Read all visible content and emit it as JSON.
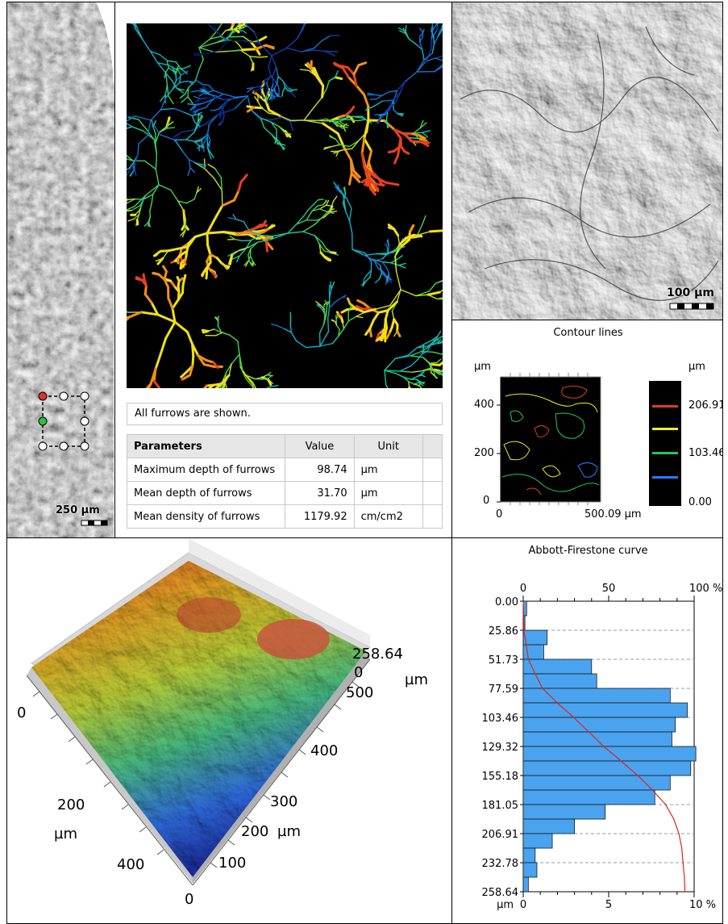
{
  "furrows": {
    "note": "All furrows are shown.",
    "table": {
      "headers": [
        "Parameters",
        "Value",
        "Unit"
      ],
      "rows": [
        {
          "name": "Maximum depth of furrows",
          "value": "98.74",
          "unit": "µm"
        },
        {
          "name": "Mean depth of furrows",
          "value": "31.70",
          "unit": "µm"
        },
        {
          "name": "Mean density of furrows",
          "value": "1179.92",
          "unit": "cm/cm2"
        }
      ]
    }
  },
  "left_strip": {
    "scale_label": "250 µm"
  },
  "surface_view": {
    "scale_label": "100 µm"
  },
  "contour": {
    "title": "Contour lines",
    "y_unit": "µm",
    "y_ticks": [
      "400",
      "200",
      "0"
    ],
    "x_ticks": [
      "0",
      "500.09 µm"
    ],
    "legend_unit": "µm",
    "legend_values": [
      "206.91",
      "103.46",
      "0.00"
    ],
    "legend_colors": [
      "#e0401e",
      "#f2ee1a",
      "#28c850",
      "#2a78ff"
    ]
  },
  "view3d": {
    "z_max_label": "258.64",
    "z_min_label": "0",
    "z_unit": "µm",
    "left_axis_ticks": [
      "0",
      "200",
      "400"
    ],
    "left_axis_unit": "µm",
    "right_axis_ticks": [
      "500",
      "400",
      "300",
      "200",
      "100",
      "0"
    ],
    "right_axis_unit": "µm"
  },
  "chart_data": {
    "type": "bar",
    "title": "Abbott-Firestone curve",
    "orientation": "horizontal",
    "top_axis_ticks": [
      "0",
      "50",
      "100 %"
    ],
    "bottom_axis_ticks": [
      "µm",
      "0",
      "5",
      "10 %"
    ],
    "depth_ticks": [
      "0.00",
      "25.86",
      "51.73",
      "77.59",
      "103.46",
      "129.32",
      "155.18",
      "181.05",
      "206.91",
      "232.78",
      "258.64"
    ],
    "depth_range": [
      0,
      258.64
    ],
    "histogram_range_percent": [
      0,
      10
    ],
    "curve_range_percent": [
      0,
      100
    ],
    "histogram": [
      {
        "from": 0,
        "to": 12.93,
        "value": 0.2
      },
      {
        "from": 12.93,
        "to": 25.86,
        "value": 0.1
      },
      {
        "from": 25.86,
        "to": 38.8,
        "value": 1.4
      },
      {
        "from": 38.8,
        "to": 51.73,
        "value": 1.2
      },
      {
        "from": 51.73,
        "to": 64.66,
        "value": 4.0
      },
      {
        "from": 64.66,
        "to": 77.59,
        "value": 4.3
      },
      {
        "from": 77.59,
        "to": 90.53,
        "value": 8.6
      },
      {
        "from": 90.53,
        "to": 103.46,
        "value": 9.6
      },
      {
        "from": 103.46,
        "to": 116.39,
        "value": 8.9
      },
      {
        "from": 116.39,
        "to": 129.32,
        "value": 8.7
      },
      {
        "from": 129.32,
        "to": 142.25,
        "value": 10.1
      },
      {
        "from": 142.25,
        "to": 155.18,
        "value": 9.8
      },
      {
        "from": 155.18,
        "to": 168.12,
        "value": 8.6
      },
      {
        "from": 168.12,
        "to": 181.05,
        "value": 7.7
      },
      {
        "from": 181.05,
        "to": 193.98,
        "value": 4.8
      },
      {
        "from": 193.98,
        "to": 206.91,
        "value": 3.0
      },
      {
        "from": 206.91,
        "to": 219.85,
        "value": 1.7
      },
      {
        "from": 219.85,
        "to": 232.78,
        "value": 0.7
      },
      {
        "from": 232.78,
        "to": 245.71,
        "value": 0.8
      },
      {
        "from": 245.71,
        "to": 258.64,
        "value": 0.3
      }
    ],
    "curve_percent": [
      0.3,
      0.4,
      1.8,
      3.0,
      7.0,
      11.3,
      19.9,
      29.5,
      38.4,
      47.1,
      57.2,
      67.0,
      75.6,
      83.3,
      88.1,
      91.1,
      92.8,
      93.5,
      94.3,
      94.6
    ]
  }
}
